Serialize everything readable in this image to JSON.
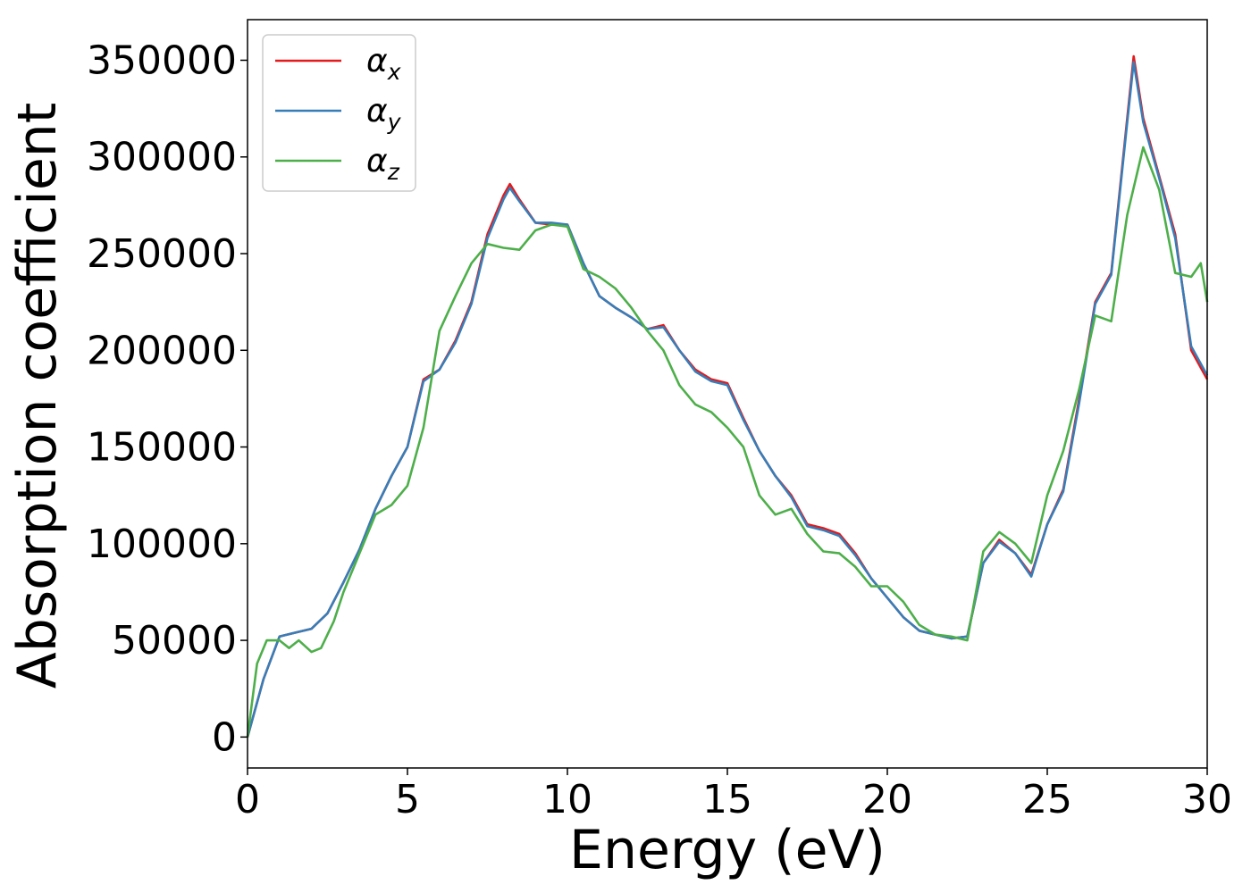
{
  "chart_data": {
    "type": "line",
    "title": "",
    "xlabel": "Energy (eV)",
    "ylabel": "Absorption coefficient",
    "xlim": [
      0,
      30
    ],
    "ylim": [
      -16000,
      371000
    ],
    "xticks": [
      0,
      5,
      10,
      15,
      20,
      25,
      30
    ],
    "yticks": [
      0,
      50000,
      100000,
      150000,
      200000,
      250000,
      300000,
      350000
    ],
    "grid": false,
    "legend_position": "top-left",
    "series": [
      {
        "name": "α_x",
        "legend_main": "α",
        "legend_sub": "x",
        "color": "#e41a1c",
        "x": [
          0,
          0.5,
          1.0,
          1.5,
          2.0,
          2.5,
          3.0,
          3.5,
          4.0,
          4.5,
          5.0,
          5.5,
          6.0,
          6.5,
          7.0,
          7.5,
          8.0,
          8.2,
          8.5,
          9.0,
          9.5,
          10.0,
          10.5,
          11.0,
          11.5,
          12.0,
          12.5,
          13.0,
          13.5,
          14.0,
          14.5,
          15.0,
          15.5,
          16.0,
          16.5,
          17.0,
          17.5,
          18.0,
          18.5,
          19.0,
          19.5,
          20.0,
          20.5,
          21.0,
          21.5,
          22.0,
          22.5,
          23.0,
          23.5,
          24.0,
          24.5,
          25.0,
          25.5,
          26.0,
          26.5,
          27.0,
          27.5,
          27.7,
          28.0,
          28.5,
          29.0,
          29.5,
          30.0
        ],
        "y": [
          0,
          30000,
          52000,
          54000,
          56000,
          64000,
          80000,
          97000,
          118000,
          135000,
          150000,
          185000,
          190000,
          205000,
          225000,
          260000,
          280000,
          286000,
          278000,
          266000,
          265000,
          265000,
          245000,
          228000,
          222000,
          217000,
          211000,
          213000,
          200000,
          190000,
          185000,
          183000,
          165000,
          148000,
          135000,
          125000,
          110000,
          108000,
          105000,
          95000,
          82000,
          72000,
          62000,
          55000,
          53000,
          51000,
          52000,
          90000,
          102000,
          95000,
          84000,
          110000,
          128000,
          175000,
          225000,
          240000,
          320000,
          352000,
          320000,
          290000,
          260000,
          200000,
          185000
        ]
      },
      {
        "name": "α_y",
        "legend_main": "α",
        "legend_sub": "y",
        "color": "#377eb8",
        "x": [
          0,
          0.5,
          1.0,
          1.5,
          2.0,
          2.5,
          3.0,
          3.5,
          4.0,
          4.5,
          5.0,
          5.5,
          6.0,
          6.5,
          7.0,
          7.5,
          8.0,
          8.2,
          8.5,
          9.0,
          9.5,
          10.0,
          10.5,
          11.0,
          11.5,
          12.0,
          12.5,
          13.0,
          13.5,
          14.0,
          14.5,
          15.0,
          15.5,
          16.0,
          16.5,
          17.0,
          17.5,
          18.0,
          18.5,
          19.0,
          19.5,
          20.0,
          20.5,
          21.0,
          21.5,
          22.0,
          22.5,
          23.0,
          23.5,
          24.0,
          24.5,
          25.0,
          25.5,
          26.0,
          26.5,
          27.0,
          27.5,
          27.7,
          28.0,
          28.5,
          29.0,
          29.5,
          30.0
        ],
        "y": [
          0,
          30000,
          52000,
          54000,
          56000,
          64000,
          80000,
          97000,
          118000,
          135000,
          150000,
          184000,
          190000,
          204000,
          224000,
          258000,
          278000,
          284000,
          277000,
          266000,
          266000,
          265000,
          245000,
          228000,
          222000,
          217000,
          211000,
          212000,
          200000,
          189000,
          184000,
          182000,
          164000,
          148000,
          135000,
          124000,
          109000,
          107000,
          104000,
          94000,
          82000,
          72000,
          62000,
          55000,
          53000,
          51000,
          52000,
          90000,
          101000,
          95000,
          83000,
          110000,
          127000,
          173000,
          224000,
          239000,
          318000,
          349000,
          318000,
          289000,
          258000,
          202000,
          187000
        ]
      },
      {
        "name": "α_z",
        "legend_main": "α",
        "legend_sub": "z",
        "color": "#4daf4a",
        "x": [
          0,
          0.3,
          0.6,
          1.0,
          1.3,
          1.6,
          2.0,
          2.3,
          2.7,
          3.0,
          3.5,
          4.0,
          4.5,
          5.0,
          5.5,
          6.0,
          6.5,
          7.0,
          7.5,
          8.0,
          8.5,
          9.0,
          9.5,
          10.0,
          10.5,
          11.0,
          11.5,
          12.0,
          12.5,
          13.0,
          13.5,
          14.0,
          14.5,
          15.0,
          15.5,
          16.0,
          16.5,
          17.0,
          17.5,
          18.0,
          18.5,
          19.0,
          19.5,
          20.0,
          20.5,
          21.0,
          21.5,
          22.0,
          22.5,
          23.0,
          23.5,
          24.0,
          24.5,
          25.0,
          25.5,
          26.0,
          26.5,
          27.0,
          27.5,
          28.0,
          28.5,
          29.0,
          29.5,
          29.8,
          30.0
        ],
        "y": [
          0,
          38000,
          50000,
          50000,
          46000,
          50000,
          44000,
          46000,
          60000,
          75000,
          95000,
          115000,
          120000,
          130000,
          160000,
          210000,
          228000,
          245000,
          255000,
          253000,
          252000,
          262000,
          265000,
          264000,
          242000,
          238000,
          232000,
          222000,
          210000,
          200000,
          182000,
          172000,
          168000,
          160000,
          150000,
          125000,
          115000,
          118000,
          105000,
          96000,
          95000,
          88000,
          78000,
          78000,
          70000,
          58000,
          53000,
          52000,
          50000,
          96000,
          106000,
          100000,
          90000,
          125000,
          148000,
          180000,
          218000,
          215000,
          270000,
          305000,
          283000,
          240000,
          238000,
          245000,
          225000
        ]
      }
    ]
  }
}
